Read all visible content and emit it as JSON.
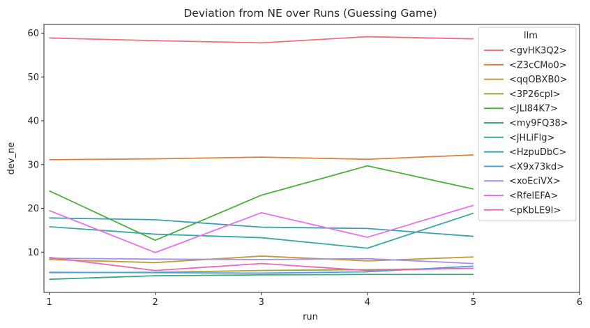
{
  "chart_data": {
    "type": "line",
    "title": "Deviation from NE over Runs (Guessing Game)",
    "xlabel": "run",
    "ylabel": "dev_ne",
    "xlim": [
      0.95,
      6
    ],
    "ylim": [
      0.8,
      62
    ],
    "x_ticks": [
      1,
      2,
      3,
      4,
      5,
      6
    ],
    "y_ticks": [
      10,
      20,
      30,
      40,
      50,
      60
    ],
    "x": [
      1,
      2,
      3,
      4,
      5
    ],
    "grid": false,
    "legend": {
      "title": "llm",
      "position": "top-right"
    },
    "series": [
      {
        "name": "<gvHK3Q2>",
        "color": "#f0707f",
        "values": [
          58.9,
          58.3,
          57.8,
          59.2,
          58.7
        ]
      },
      {
        "name": "<Z3cCMo0>",
        "color": "#da8040",
        "values": [
          31.1,
          31.3,
          31.7,
          31.2,
          32.2
        ]
      },
      {
        "name": "<qqOBXB0>",
        "color": "#c29b3d",
        "values": [
          8.3,
          7.6,
          9.1,
          8.0,
          8.9
        ]
      },
      {
        "name": "<3P26cpI>",
        "color": "#a0a33a",
        "values": [
          5.3,
          5.4,
          5.8,
          6.0,
          6.3
        ]
      },
      {
        "name": "<JLI84K7>",
        "color": "#4dae3c",
        "values": [
          24.0,
          12.7,
          23.0,
          29.7,
          24.4
        ]
      },
      {
        "name": "<my9FQ38>",
        "color": "#3aa580",
        "values": [
          3.8,
          4.6,
          4.8,
          4.9,
          4.9
        ]
      },
      {
        "name": "<jHLiFlg>",
        "color": "#3aa8a0",
        "values": [
          15.8,
          14.1,
          13.3,
          10.9,
          18.9
        ]
      },
      {
        "name": "<HzpuDbC>",
        "color": "#3da0b0",
        "values": [
          17.8,
          17.4,
          15.7,
          15.4,
          13.6
        ]
      },
      {
        "name": "<X9x73kd>",
        "color": "#4aa0e0",
        "values": [
          5.4,
          5.3,
          5.2,
          5.5,
          6.8
        ]
      },
      {
        "name": "<xoEciVX>",
        "color": "#a492e4",
        "values": [
          8.6,
          8.4,
          8.3,
          8.5,
          7.4
        ]
      },
      {
        "name": "<RfelEFA>",
        "color": "#e670ee",
        "values": [
          19.5,
          9.9,
          19.0,
          13.4,
          20.7
        ]
      },
      {
        "name": "<pKbLE9I>",
        "color": "#ec68b6",
        "values": [
          8.8,
          5.8,
          7.4,
          5.8,
          6.3
        ]
      }
    ]
  }
}
